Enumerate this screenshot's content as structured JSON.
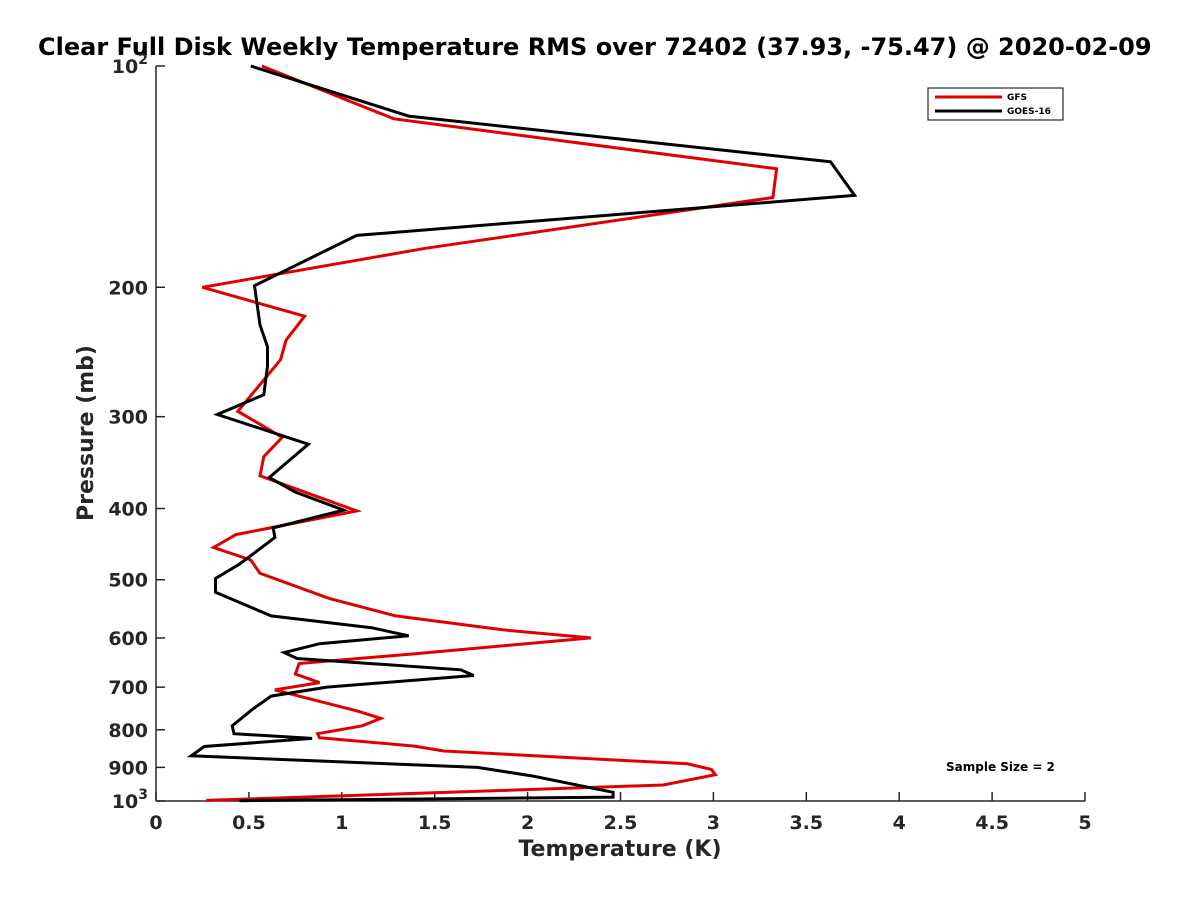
{
  "chart_data": {
    "type": "line",
    "title": "Clear Full Disk Weekly Temperature RMS over 72402 (37.93, -75.47) @ 2020-02-09",
    "xlabel": "Temperature (K)",
    "ylabel": "Pressure (mb)",
    "xlim": [
      0,
      5
    ],
    "ylim": [
      100,
      1000
    ],
    "yscale": "log",
    "y_reversed": true,
    "x_ticks": [
      "0",
      "0.5",
      "1",
      "1.5",
      "2",
      "2.5",
      "3",
      "3.5",
      "4",
      "4.5",
      "5"
    ],
    "y_ticks": [
      {
        "value": 100,
        "base": "10",
        "exp": "2"
      },
      {
        "value": 200,
        "base": "200",
        "exp": ""
      },
      {
        "value": 300,
        "base": "300",
        "exp": ""
      },
      {
        "value": 400,
        "base": "400",
        "exp": ""
      },
      {
        "value": 500,
        "base": "500",
        "exp": ""
      },
      {
        "value": 600,
        "base": "600",
        "exp": ""
      },
      {
        "value": 700,
        "base": "700",
        "exp": ""
      },
      {
        "value": 800,
        "base": "800",
        "exp": ""
      },
      {
        "value": 900,
        "base": "900",
        "exp": ""
      },
      {
        "value": 1000,
        "base": "10",
        "exp": "3"
      }
    ],
    "legend_position": "top-right",
    "grid": false,
    "annotation": "Sample Size = 2",
    "series": [
      {
        "name": "GFS",
        "color": "#e00000",
        "points": [
          [
            0.57,
            100
          ],
          [
            1.28,
            118
          ],
          [
            3.34,
            138
          ],
          [
            3.32,
            151
          ],
          [
            1.45,
            177
          ],
          [
            0.25,
            200
          ],
          [
            0.8,
            219
          ],
          [
            0.7,
            236
          ],
          [
            0.67,
            251
          ],
          [
            0.52,
            279
          ],
          [
            0.44,
            295
          ],
          [
            0.68,
            320
          ],
          [
            0.58,
            340
          ],
          [
            0.56,
            361
          ],
          [
            1.08,
            403
          ],
          [
            0.43,
            434
          ],
          [
            0.31,
            452
          ],
          [
            0.51,
            470
          ],
          [
            0.56,
            490
          ],
          [
            0.93,
            530
          ],
          [
            1.29,
            560
          ],
          [
            1.87,
            585
          ],
          [
            2.34,
            600
          ],
          [
            1.41,
            630
          ],
          [
            0.77,
            650
          ],
          [
            0.75,
            672
          ],
          [
            0.88,
            690
          ],
          [
            0.64,
            706
          ],
          [
            1.09,
            755
          ],
          [
            1.21,
            772
          ],
          [
            1.11,
            790
          ],
          [
            0.87,
            810
          ],
          [
            0.88,
            820
          ],
          [
            1.39,
            842
          ],
          [
            1.55,
            855
          ],
          [
            2.86,
            890
          ],
          [
            2.99,
            906
          ],
          [
            3.01,
            921
          ],
          [
            2.73,
            951
          ],
          [
            0.27,
            998
          ]
        ]
      },
      {
        "name": "GOES-16",
        "color": "#000000",
        "points": [
          [
            0.51,
            100
          ],
          [
            1.36,
            117
          ],
          [
            3.63,
            135
          ],
          [
            3.76,
            150
          ],
          [
            1.08,
            170
          ],
          [
            0.53,
            199
          ],
          [
            0.56,
            225
          ],
          [
            0.6,
            241
          ],
          [
            0.6,
            256
          ],
          [
            0.58,
            280
          ],
          [
            0.33,
            298
          ],
          [
            0.82,
            327
          ],
          [
            0.7,
            347
          ],
          [
            0.61,
            363
          ],
          [
            0.75,
            380
          ],
          [
            1.01,
            402
          ],
          [
            0.63,
            425
          ],
          [
            0.64,
            438
          ],
          [
            0.45,
            476
          ],
          [
            0.32,
            498
          ],
          [
            0.32,
            520
          ],
          [
            0.62,
            560
          ],
          [
            1.16,
            581
          ],
          [
            1.36,
            596
          ],
          [
            0.88,
            611
          ],
          [
            0.69,
            628
          ],
          [
            0.76,
            640
          ],
          [
            1.64,
            663
          ],
          [
            1.71,
            675
          ],
          [
            0.92,
            700
          ],
          [
            0.62,
            720
          ],
          [
            0.52,
            750
          ],
          [
            0.41,
            790
          ],
          [
            0.42,
            810
          ],
          [
            0.84,
            822
          ],
          [
            0.26,
            843
          ],
          [
            0.19,
            868
          ],
          [
            1.73,
            900
          ],
          [
            2.03,
            925
          ],
          [
            2.46,
            973
          ],
          [
            2.46,
            988
          ],
          [
            0.45,
            999
          ]
        ]
      }
    ]
  }
}
